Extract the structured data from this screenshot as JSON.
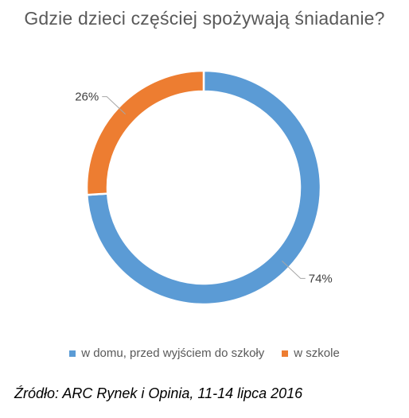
{
  "chart_data": {
    "type": "pie",
    "subtype": "doughnut",
    "title": "Gdzie dzieci częściej spożywają śniadanie?",
    "slices": [
      {
        "label": "w domu, przed wyjściem do szkoły",
        "value": 74,
        "display": "74%",
        "color": "#5b9bd5"
      },
      {
        "label": "w szkole",
        "value": 26,
        "display": "26%",
        "color": "#ed7d31"
      }
    ],
    "legend_position": "bottom",
    "source": "Źródło: ARC Rynek i Opinia, 11-14 lipca 2016"
  }
}
